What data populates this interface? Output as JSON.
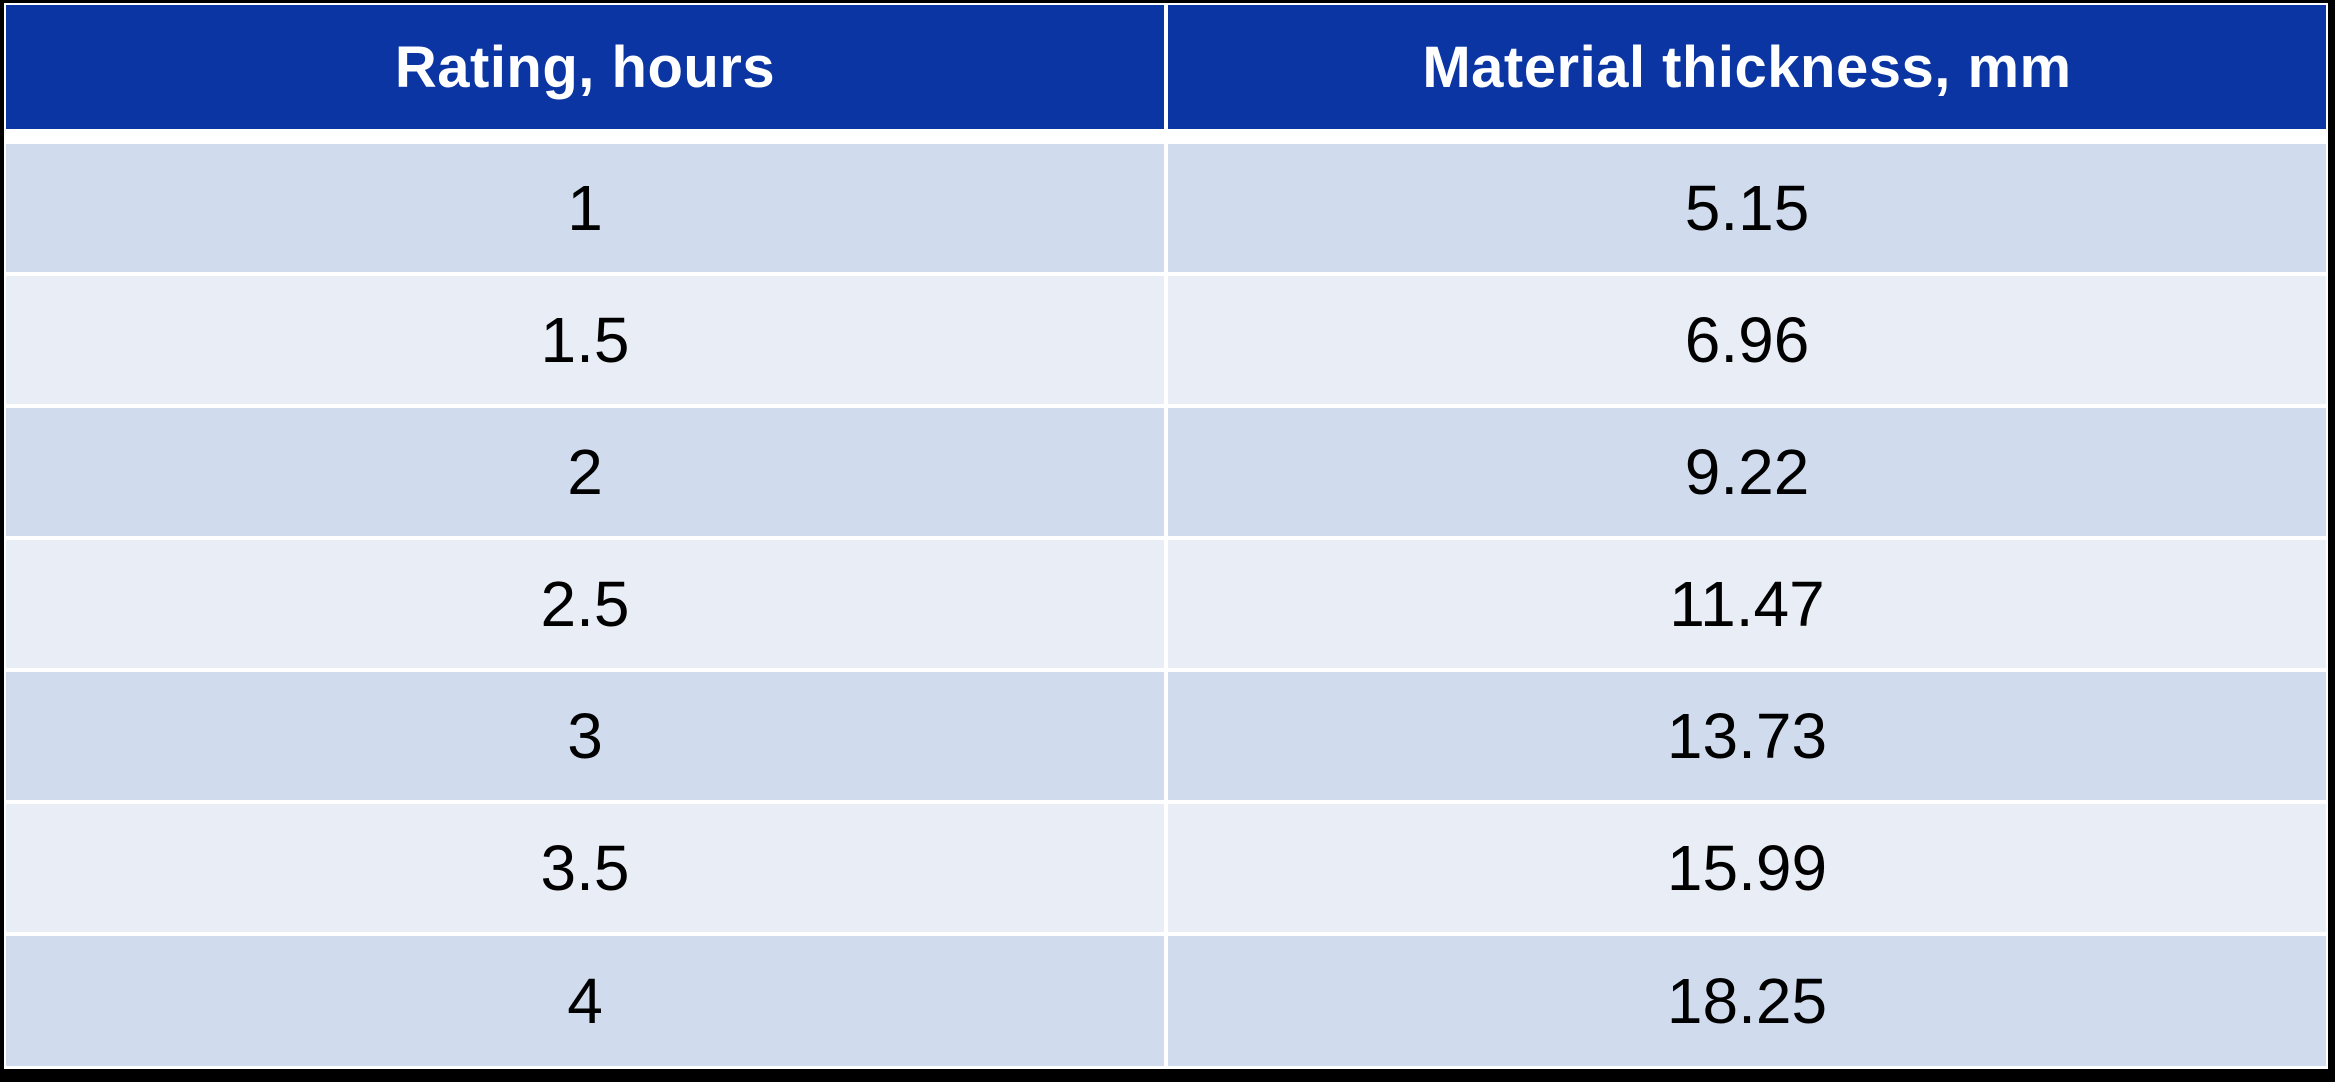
{
  "table": {
    "columns": [
      {
        "label": "Rating, hours"
      },
      {
        "label": "Material thickness, mm"
      }
    ],
    "rows": [
      {
        "rating": "1",
        "thickness": "5.15"
      },
      {
        "rating": "1.5",
        "thickness": "6.96"
      },
      {
        "rating": "2",
        "thickness": "9.22"
      },
      {
        "rating": "2.5",
        "thickness": "11.47"
      },
      {
        "rating": "3",
        "thickness": "13.73"
      },
      {
        "rating": "3.5",
        "thickness": "15.99"
      },
      {
        "rating": "4",
        "thickness": "18.25"
      }
    ]
  },
  "colors": {
    "frame": "#000000",
    "gap": "#FFFFFF",
    "header_bg": "#0B35A3",
    "header_text": "#FFFFFF",
    "row_odd_bg": "#D0DCEE",
    "row_even_bg": "#E9EDF6",
    "body_text": "#000000"
  },
  "chart_data": {
    "type": "table",
    "title": "",
    "columns": [
      "Rating, hours",
      "Material thickness, mm"
    ],
    "rows": [
      [
        1,
        5.15
      ],
      [
        1.5,
        6.96
      ],
      [
        2,
        9.22
      ],
      [
        2.5,
        11.47
      ],
      [
        3,
        13.73
      ],
      [
        3.5,
        15.99
      ],
      [
        4,
        18.25
      ]
    ],
    "layout_hints": {
      "header_style": "dark-blue banded header, white text",
      "row_banding": [
        "odd rows #D0DCEE",
        "even rows #E9EDF6"
      ],
      "grid": "white 4px separators, black outer frame"
    }
  }
}
